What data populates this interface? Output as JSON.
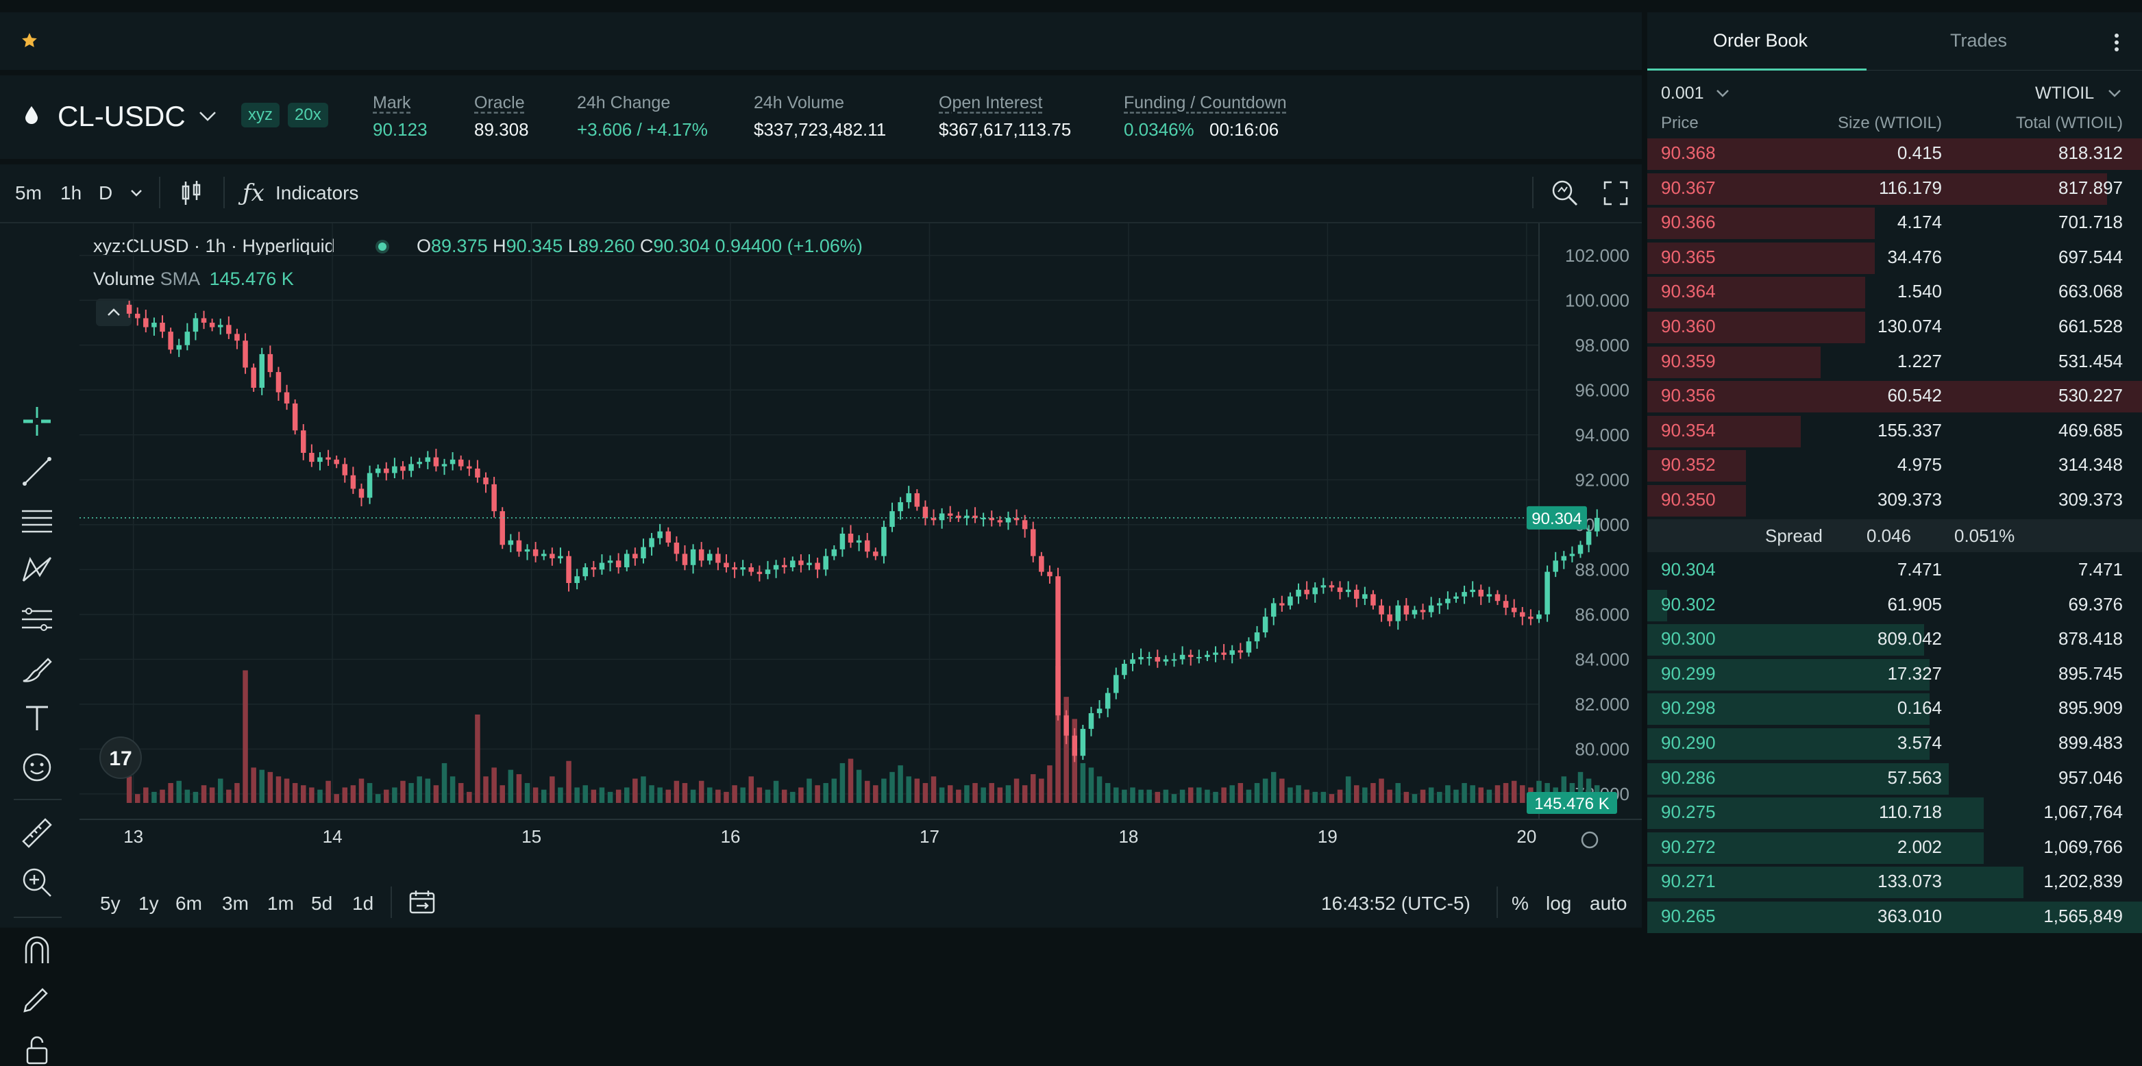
{
  "top": {
    "star_icon": "star-icon"
  },
  "ticker": {
    "symbol": "CL-USDC",
    "tag_dex": "xyz",
    "tag_leverage": "20x",
    "stats": [
      {
        "label": "Mark",
        "value": "90.123",
        "color": "green",
        "underline": true
      },
      {
        "label": "Oracle",
        "value": "89.308",
        "color": "white",
        "underline": true
      },
      {
        "label": "24h Change",
        "value": "+3.606 / +4.17%",
        "color": "green",
        "underline": false
      },
      {
        "label": "24h Volume",
        "value": "$337,723,482.11",
        "color": "white",
        "underline": false
      },
      {
        "label": "Open Interest",
        "value": "$367,617,113.75",
        "color": "white",
        "underline": true
      },
      {
        "label": "Funding / Countdown",
        "value": "0.0346%",
        "value2": "00:16:06",
        "color": "green",
        "underline": true
      }
    ]
  },
  "toolbar": {
    "tf_5m": "5m",
    "tf_1h": "1h",
    "tf_d": "D",
    "indicators": "Indicators"
  },
  "legend": {
    "title": "xyz:CLUSD · 1h · Hyperliquid",
    "o_label": "O",
    "o": "89.375",
    "h_label": "H",
    "h": "90.345",
    "l_label": "L",
    "l": "89.260",
    "c_label": "C",
    "c": "90.304",
    "change": "0.94400 (+1.06%)",
    "volume_label": "Volume",
    "sma_label": "SMA",
    "volume_value": "145.476 K"
  },
  "chart_data": {
    "type": "candlestick",
    "symbol": "xyz:CLUSD",
    "ylim": [
      77.6,
      103.0
    ],
    "y_ticks": [
      102,
      100,
      98,
      96,
      94,
      92,
      90,
      88,
      86,
      84,
      82,
      80,
      78
    ],
    "y_tick_labels": [
      "102.000",
      "100.000",
      "98.000",
      "96.000",
      "94.000",
      "92.000",
      "90.000",
      "88.000",
      "86.000",
      "84.000",
      "82.000",
      "80.000",
      "78.000"
    ],
    "x_labels": [
      "13",
      "14",
      "15",
      "16",
      "17",
      "18",
      "19",
      "20"
    ],
    "x_ticks": [
      0.5,
      24.5,
      48.5,
      72.5,
      96.5,
      120.5,
      144.5,
      168.5
    ],
    "x_range": [
      -6,
      170
    ],
    "last_price": "90.304",
    "last_value": 90.304,
    "volume_label": "145.476 K",
    "closes": [
      99.4,
      99.2,
      98.8,
      99.0,
      98.6,
      97.8,
      98.0,
      98.6,
      99.2,
      99.0,
      98.8,
      98.9,
      98.5,
      98.2,
      97.0,
      96.1,
      97.6,
      96.8,
      95.9,
      95.4,
      94.2,
      93.2,
      92.8,
      93.0,
      92.9,
      92.7,
      92.2,
      91.6,
      91.2,
      92.3,
      92.5,
      92.3,
      92.6,
      92.4,
      92.7,
      92.8,
      93.0,
      92.6,
      92.7,
      92.9,
      92.6,
      92.5,
      92.1,
      91.8,
      90.6,
      89.1,
      89.3,
      88.8,
      88.9,
      88.6,
      88.7,
      88.5,
      88.6,
      87.4,
      87.7,
      88.1,
      88.0,
      88.3,
      88.4,
      88.1,
      88.7,
      88.5,
      89.0,
      89.4,
      89.7,
      89.2,
      88.7,
      88.2,
      88.9,
      88.4,
      88.7,
      88.3,
      88.1,
      88.0,
      88.1,
      87.9,
      87.8,
      88.0,
      88.2,
      88.1,
      88.4,
      88.2,
      88.3,
      88.0,
      88.6,
      88.9,
      89.6,
      89.2,
      89.3,
      88.8,
      88.6,
      89.9,
      90.6,
      91.0,
      91.4,
      90.8,
      90.3,
      90.2,
      90.5,
      90.4,
      90.3,
      90.4,
      90.3,
      90.3,
      90.2,
      90.1,
      90.3,
      90.2,
      89.8,
      88.6,
      87.9,
      87.7,
      81.5,
      80.6,
      79.7,
      80.9,
      81.6,
      81.8,
      82.5,
      83.3,
      83.8,
      84.0,
      84.1,
      84.1,
      83.9,
      84.0,
      84.0,
      84.2,
      84.1,
      84.1,
      84.2,
      84.3,
      84.2,
      84.4,
      84.3,
      84.8,
      85.2,
      85.9,
      86.5,
      86.4,
      86.8,
      87.1,
      86.9,
      87.2,
      87.3,
      87.2,
      87.0,
      87.1,
      86.7,
      86.9,
      86.4,
      86.0,
      85.7,
      86.4,
      86.0,
      86.2,
      86.1,
      86.4,
      86.5,
      86.7,
      86.8,
      87.0,
      87.1,
      86.8,
      86.9,
      86.6,
      86.3,
      86.1,
      85.9,
      85.8,
      86.0,
      87.9,
      88.4,
      88.6,
      88.7,
      89.1,
      89.7,
      90.304
    ],
    "volumes": [
      60,
      20,
      35,
      25,
      30,
      45,
      50,
      30,
      25,
      40,
      35,
      55,
      30,
      45,
      300,
      80,
      75,
      70,
      60,
      55,
      45,
      40,
      35,
      30,
      50,
      20,
      35,
      40,
      55,
      45,
      20,
      30,
      35,
      50,
      45,
      60,
      55,
      40,
      90,
      60,
      45,
      25,
      200,
      60,
      80,
      40,
      75,
      65,
      45,
      35,
      30,
      60,
      35,
      95,
      35,
      40,
      30,
      35,
      25,
      30,
      35,
      55,
      60,
      40,
      35,
      30,
      50,
      45,
      30,
      50,
      35,
      30,
      25,
      40,
      35,
      60,
      35,
      30,
      50,
      30,
      25,
      35,
      55,
      40,
      45,
      55,
      90,
      100,
      75,
      50,
      40,
      55,
      70,
      85,
      60,
      55,
      45,
      60,
      35,
      40,
      30,
      40,
      45,
      35,
      45,
      35,
      40,
      55,
      40,
      65,
      55,
      85,
      310,
      240,
      190,
      90,
      80,
      60,
      45,
      35,
      30,
      35,
      30,
      30,
      25,
      30,
      20,
      30,
      35,
      35,
      30,
      25,
      35,
      40,
      45,
      30,
      45,
      55,
      70,
      55,
      35,
      40,
      30,
      25,
      25,
      20,
      30,
      60,
      40,
      35,
      45,
      55,
      30,
      45,
      25,
      20,
      30,
      35,
      25,
      40,
      30,
      45,
      40,
      35,
      30,
      40,
      45,
      50,
      40,
      35,
      50,
      45,
      35,
      60,
      45,
      70,
      55,
      40
    ]
  },
  "bottom": {
    "ranges": [
      "5y",
      "1y",
      "6m",
      "3m",
      "1m",
      "5d",
      "1d"
    ],
    "time": "16:43:52 (UTC-5)",
    "pct": "%",
    "log": "log",
    "auto": "auto"
  },
  "orderbook": {
    "tab_book": "Order Book",
    "tab_trades": "Trades",
    "precision": "0.001",
    "asset": "WTIOIL",
    "col_price": "Price",
    "col_size": "Size (WTIOIL)",
    "col_total": "Total (WTIOIL)",
    "asks": [
      {
        "p": "90.368",
        "s": "0.415",
        "t": "818.312",
        "d": 1.0
      },
      {
        "p": "90.367",
        "s": "116.179",
        "t": "817.897",
        "d": 0.93
      },
      {
        "p": "90.366",
        "s": "4.174",
        "t": "701.718",
        "d": 0.46
      },
      {
        "p": "90.365",
        "s": "34.476",
        "t": "697.544",
        "d": 0.46
      },
      {
        "p": "90.364",
        "s": "1.540",
        "t": "663.068",
        "d": 0.44
      },
      {
        "p": "90.360",
        "s": "130.074",
        "t": "661.528",
        "d": 0.44
      },
      {
        "p": "90.359",
        "s": "1.227",
        "t": "531.454",
        "d": 0.35
      },
      {
        "p": "90.356",
        "s": "60.542",
        "t": "530.227",
        "d": 1.0
      },
      {
        "p": "90.354",
        "s": "155.337",
        "t": "469.685",
        "d": 0.31
      },
      {
        "p": "90.352",
        "s": "4.975",
        "t": "314.348",
        "d": 0.2
      },
      {
        "p": "90.350",
        "s": "309.373",
        "t": "309.373",
        "d": 0.2
      }
    ],
    "spread_label": "Spread",
    "spread": "0.046",
    "spread_pct": "0.051%",
    "bids": [
      {
        "p": "90.304",
        "s": "7.471",
        "t": "7.471",
        "d": 0.0
      },
      {
        "p": "90.302",
        "s": "61.905",
        "t": "69.376",
        "d": 0.04
      },
      {
        "p": "90.300",
        "s": "809.042",
        "t": "878.418",
        "d": 0.56
      },
      {
        "p": "90.299",
        "s": "17.327",
        "t": "895.745",
        "d": 0.57
      },
      {
        "p": "90.298",
        "s": "0.164",
        "t": "895.909",
        "d": 0.57
      },
      {
        "p": "90.290",
        "s": "3.574",
        "t": "899.483",
        "d": 0.57
      },
      {
        "p": "90.286",
        "s": "57.563",
        "t": "957.046",
        "d": 0.61
      },
      {
        "p": "90.275",
        "s": "110.718",
        "t": "1,067,764",
        "d": 0.68
      },
      {
        "p": "90.272",
        "s": "2.002",
        "t": "1,069,766",
        "d": 0.68
      },
      {
        "p": "90.271",
        "s": "133.073",
        "t": "1,202,839",
        "d": 0.76
      },
      {
        "p": "90.265",
        "s": "363.010",
        "t": "1,565,849",
        "d": 1.0
      }
    ]
  },
  "colors": {
    "green": "#4fd1ad",
    "red": "#f06470",
    "bg": "#0f1a1e",
    "ask_bar": "#3b1c22",
    "bid_bar": "#123832"
  }
}
